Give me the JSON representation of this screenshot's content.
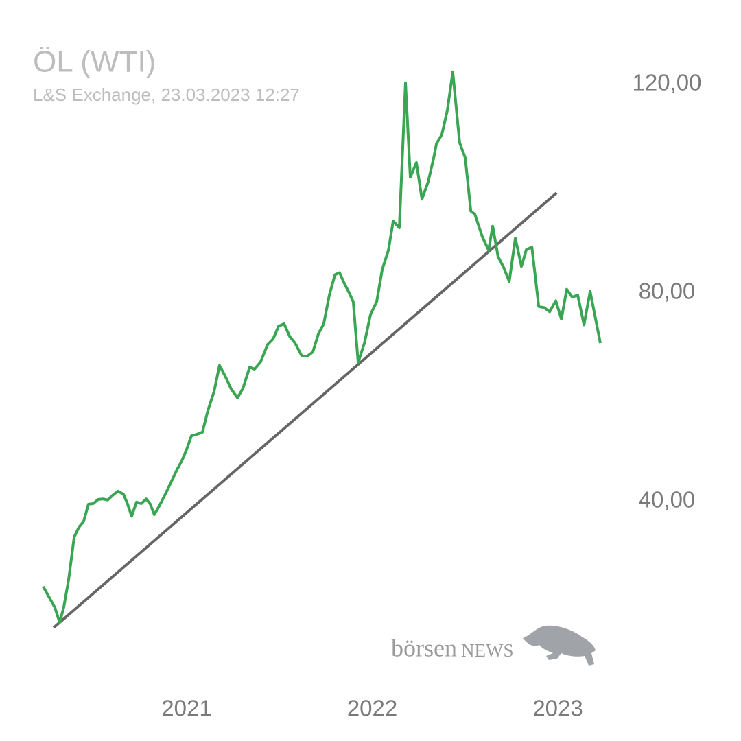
{
  "chart_data": {
    "type": "line",
    "title": "ÖL (WTI)",
    "subtitle": "L&S Exchange, 23.03.2023 12:27",
    "watermark": {
      "part1": "börsen",
      "part2": "NEWS"
    },
    "color": "#3aa552",
    "x": [
      2020.227,
      2020.29,
      2020.316,
      2020.338,
      2020.364,
      2020.394,
      2020.42,
      2020.445,
      2020.471,
      2020.497,
      2020.523,
      2020.549,
      2020.575,
      2020.601,
      2020.63,
      2020.66,
      2020.682,
      2020.704,
      2020.73,
      2020.756,
      2020.782,
      2020.804,
      2020.826,
      2020.852,
      2020.882,
      2020.911,
      2020.948,
      2020.974,
      2021.0,
      2021.026,
      2021.055,
      2021.085,
      2021.115,
      2021.148,
      2021.177,
      2021.207,
      2021.24,
      2021.274,
      2021.303,
      2021.34,
      2021.366,
      2021.399,
      2021.436,
      2021.466,
      2021.495,
      2021.525,
      2021.555,
      2021.584,
      2021.621,
      2021.651,
      2021.68,
      2021.71,
      2021.739,
      2021.769,
      2021.799,
      2021.824,
      2021.85,
      2021.876,
      2021.898,
      2021.924,
      2021.958,
      2021.991,
      2022.024,
      2022.054,
      2022.087,
      2022.113,
      2022.146,
      2022.179,
      2022.205,
      2022.238,
      2022.268,
      2022.301,
      2022.331,
      2022.346,
      2022.375,
      2022.405,
      2022.434,
      2022.471,
      2022.501,
      2022.531,
      2022.553,
      2022.593,
      2022.627,
      2022.649,
      2022.678,
      2022.708,
      2022.738,
      2022.771,
      2022.804,
      2022.83,
      2022.86,
      2022.897,
      2022.926,
      2022.956,
      2022.989,
      2023.019,
      2023.048,
      2023.078,
      2023.107,
      2023.141,
      2023.174,
      2023.229
    ],
    "values": [
      23.7,
      19.7,
      16.8,
      19.7,
      25.0,
      33.2,
      35.1,
      36.2,
      39.5,
      39.6,
      40.4,
      40.5,
      40.3,
      41.2,
      42.0,
      41.4,
      39.5,
      37.2,
      39.9,
      39.6,
      40.5,
      39.5,
      37.5,
      39.1,
      41.2,
      43.3,
      46.1,
      47.8,
      50.0,
      52.6,
      52.9,
      53.3,
      57.5,
      61.1,
      66.1,
      64.1,
      61.6,
      59.9,
      61.7,
      65.8,
      65.4,
      66.8,
      70.1,
      71.2,
      73.6,
      74.1,
      71.7,
      70.4,
      67.9,
      67.9,
      68.7,
      72.2,
      74.1,
      79.6,
      83.5,
      83.9,
      81.8,
      80.0,
      78.3,
      66.7,
      70.4,
      75.9,
      78.3,
      84.5,
      88.2,
      93.8,
      92.5,
      120.3,
      102.2,
      105.0,
      98.0,
      101.3,
      105.9,
      108.6,
      110.4,
      115.1,
      122.4,
      108.8,
      105.9,
      95.7,
      95.1,
      90.8,
      88.2,
      92.8,
      87.0,
      84.9,
      82.2,
      90.5,
      85.1,
      88.3,
      88.8,
      77.4,
      77.2,
      76.4,
      78.5,
      75.0,
      80.7,
      79.2,
      79.6,
      73.9,
      80.3,
      70.4
    ],
    "trendline": {
      "x": [
        2020.283,
        2022.993
      ],
      "values": [
        15.8,
        99.2
      ],
      "color": "#666666"
    },
    "xlim": [
      2020.2,
      2023.3
    ],
    "xticks": [
      2021,
      2022,
      2023
    ],
    "ylim": [
      10,
      130
    ],
    "yticks": [
      {
        "value": 40,
        "label": "40,00"
      },
      {
        "value": 80,
        "label": "80,00"
      },
      {
        "value": 120,
        "label": "120,00"
      }
    ],
    "grid": false
  }
}
